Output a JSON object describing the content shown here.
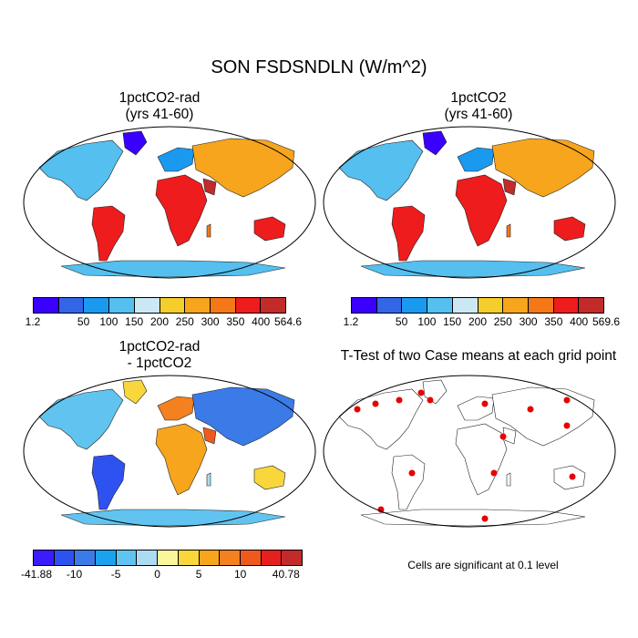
{
  "title": "SON FSDSNDLN (W/m^2)",
  "panels": [
    {
      "title_line1": "1pctCO2-rad",
      "title_line2": "(yrs 41-60)",
      "colorbar": {
        "labels": [
          "1.2",
          "50",
          "100",
          "150",
          "200",
          "250",
          "300",
          "350",
          "400",
          "564.6"
        ],
        "colors": [
          "#3a00ff",
          "#3366e6",
          "#1a9aef",
          "#55bfef",
          "#cde8f5",
          "#f5cd2c",
          "#f7a51c",
          "#f47818",
          "#ee1c1c",
          "#c32a2a"
        ]
      }
    },
    {
      "title_line1": "1pctCO2",
      "title_line2": "(yrs 41-60)",
      "colorbar": {
        "labels": [
          "1.2",
          "50",
          "100",
          "150",
          "200",
          "250",
          "300",
          "350",
          "400",
          "569.6"
        ],
        "colors": [
          "#3a00ff",
          "#3366e6",
          "#1a9aef",
          "#55bfef",
          "#cde8f5",
          "#f5cd2c",
          "#f7a51c",
          "#f47818",
          "#ee1c1c",
          "#c32a2a"
        ]
      }
    },
    {
      "title_line1": "1pctCO2-rad",
      "title_line2": "- 1pctCO2",
      "colorbar": {
        "labels": [
          "-41.88",
          "-10",
          "-5",
          "0",
          "5",
          "10",
          "40.78"
        ],
        "colors": [
          "#3a1cff",
          "#2e52f0",
          "#3a7be8",
          "#1aa2ee",
          "#61c4f0",
          "#abdcf2",
          "#fbf69b",
          "#f8d63c",
          "#f7a51c",
          "#f48020",
          "#ef5a1c",
          "#e6201e",
          "#c32a2a"
        ]
      }
    },
    {
      "title_line1": "T-Test of two Case means at each grid point",
      "title_line2": ""
    }
  ],
  "note": "Cells are significant at 0.1 level"
}
